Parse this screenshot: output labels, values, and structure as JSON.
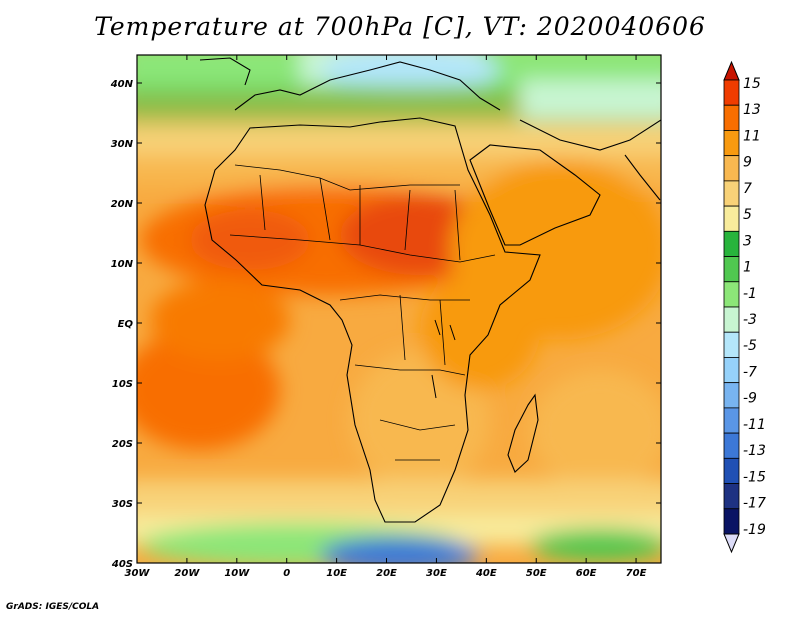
{
  "title": "Temperature at 700hPa [C], VT: 2020040606",
  "credit": "GrADS: IGES/COLA",
  "map": {
    "lon_range": [
      -30,
      75
    ],
    "lat_range": [
      -40,
      45
    ],
    "lon_ticks": [
      "30W",
      "20W",
      "10W",
      "0",
      "10E",
      "20E",
      "30E",
      "40E",
      "50E",
      "60E",
      "70E"
    ],
    "lat_ticks": [
      "40N",
      "30N",
      "20N",
      "10N",
      "EQ",
      "10S",
      "20S",
      "30S",
      "40S"
    ]
  },
  "colorbar": {
    "labels": [
      "15",
      "13",
      "11",
      "9",
      "7",
      "5",
      "3",
      "1",
      "-1",
      "-3",
      "-5",
      "-7",
      "-9",
      "-11",
      "-13",
      "-15",
      "-17",
      "-19"
    ],
    "colors": [
      "#c81400",
      "#f03c00",
      "#f86e00",
      "#f89a10",
      "#f8b850",
      "#f8d278",
      "#f8ec9c",
      "#28b43c",
      "#50c850",
      "#8ce678",
      "#c8f5d2",
      "#b4e6fa",
      "#96d2fa",
      "#78b4f0",
      "#5a96e6",
      "#3c78d7",
      "#2050b4",
      "#1e3282",
      "#0a1464",
      "#dcdcf8"
    ]
  },
  "colors": {
    "ocean_base": "#f8aa40",
    "land_hot": "#e84a10",
    "coast": "#000000"
  }
}
